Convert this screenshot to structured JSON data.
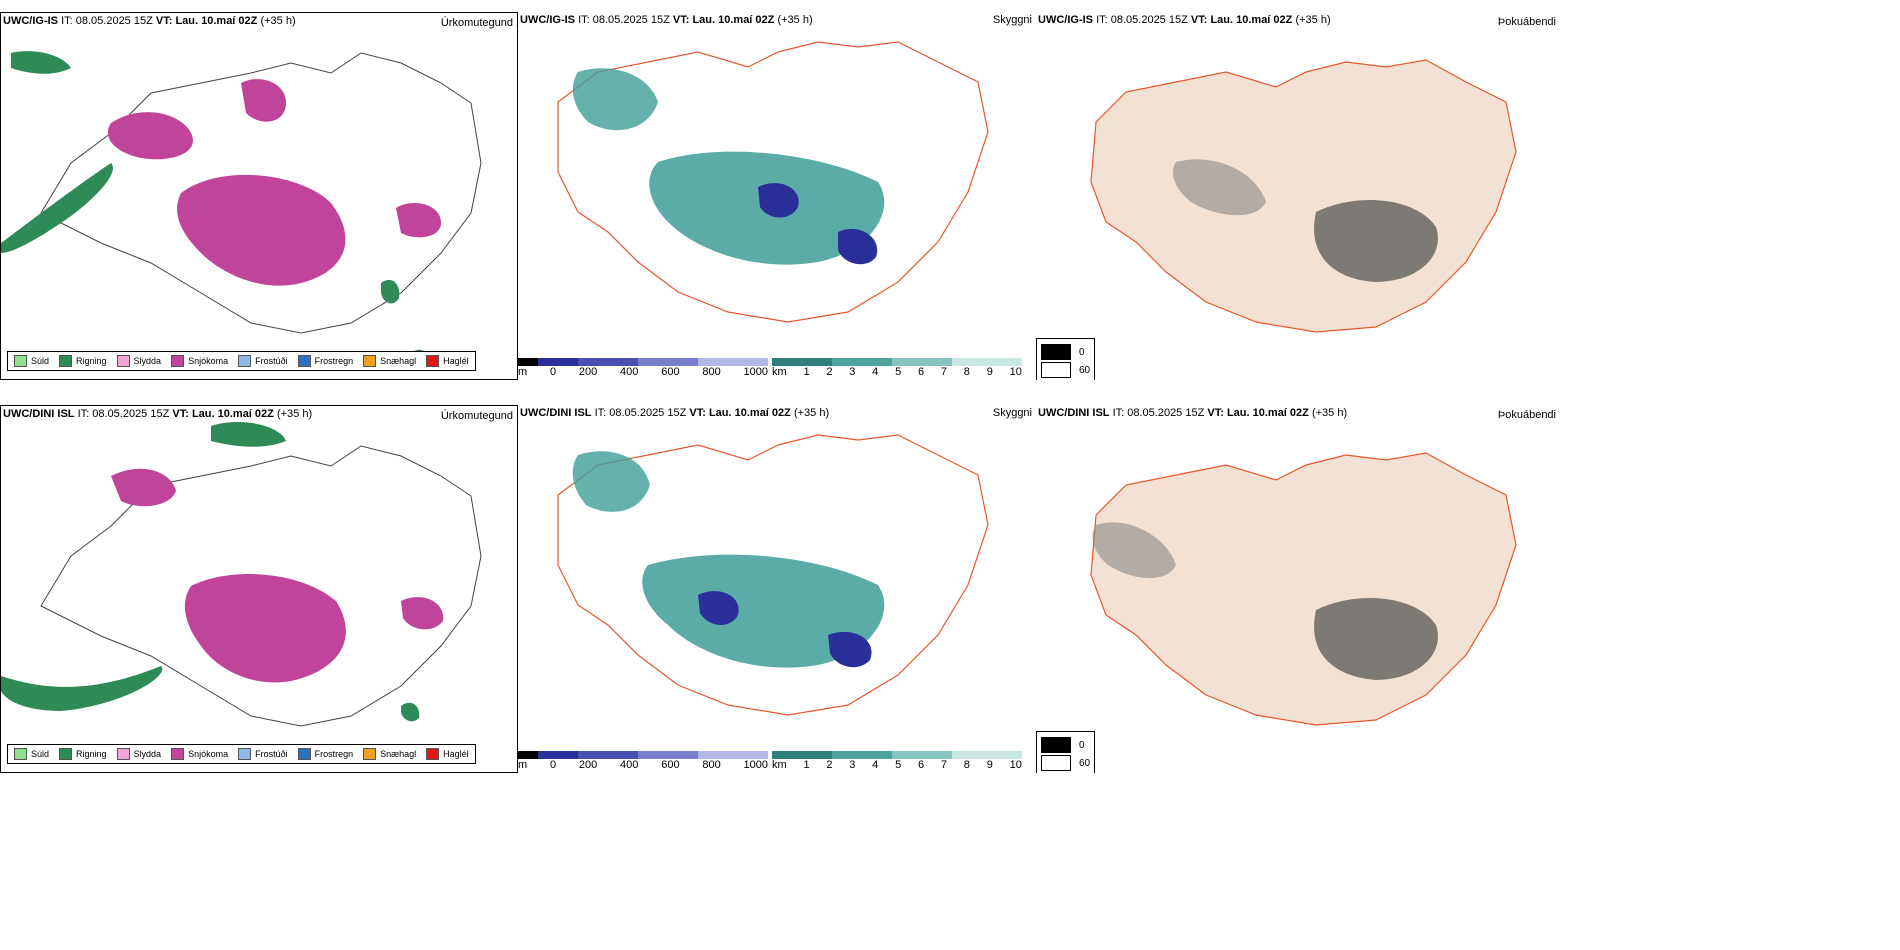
{
  "rows": [
    {
      "model": "UWC/IG-IS",
      "it_label": "IT:",
      "it_value": "08.05.2025 15Z",
      "vt_label": "VT:",
      "vt_value": "Lau. 10.maí 02Z",
      "lead": "(+35 h)"
    },
    {
      "model": "UWC/DINI ISL",
      "it_label": "IT:",
      "it_value": "08.05.2025 15Z",
      "vt_label": "VT:",
      "vt_value": "Lau. 10.maí 02Z",
      "lead": "(+35 h)"
    }
  ],
  "panels": {
    "precip_type_title": "Úrkomutegund",
    "cloud_title": "Skyggni",
    "fog_title": "Þokuábendi"
  },
  "precip_legend": [
    {
      "label": "Súld",
      "color": "#8fe08f"
    },
    {
      "label": "Rigning",
      "color": "#2e8b57"
    },
    {
      "label": "Slydda",
      "color": "#f0a6d4"
    },
    {
      "label": "Snjókoma",
      "color": "#c0449a"
    },
    {
      "label": "Frostúði",
      "color": "#8fb8e8"
    },
    {
      "label": "Frostregn",
      "color": "#2f6fc0"
    },
    {
      "label": "Snæhagl",
      "color": "#f0a020"
    },
    {
      "label": "Haglél",
      "color": "#e01818"
    }
  ],
  "cloud_bar_m": {
    "unit": "m",
    "ticks": [
      "0",
      "200",
      "400",
      "600",
      "800",
      "1000"
    ]
  },
  "cloud_bar_km": {
    "unit": "km",
    "ticks": [
      "1",
      "2",
      "3",
      "4",
      "5",
      "6",
      "7",
      "8",
      "9",
      "10"
    ]
  },
  "fog_legend": [
    {
      "label": "0",
      "color": "#000000"
    },
    {
      "label": "60",
      "color": "#ffffff"
    }
  ],
  "colors": {
    "land": "#f3e2d3",
    "roads": "#e8572b",
    "rivers": "#8aa0f0",
    "cloud_teal": "#3e9e96",
    "cloud_blue": "#2a2f9a",
    "snow": "#c0449a",
    "rain": "#2e8b57"
  }
}
